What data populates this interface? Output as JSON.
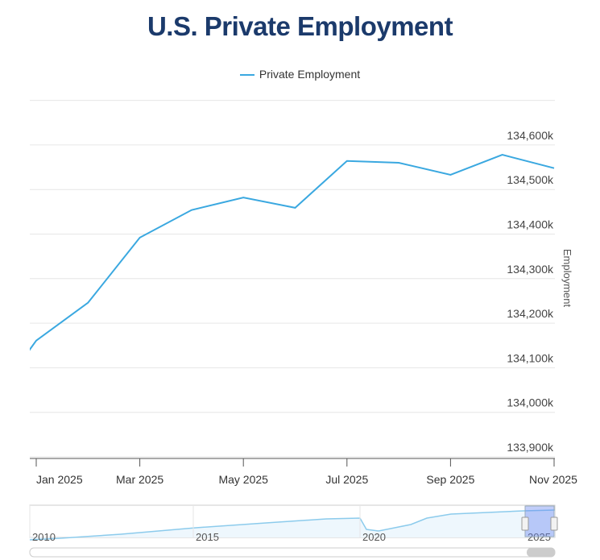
{
  "chart_data": {
    "type": "line",
    "title": "U.S. Private Employment",
    "ylabel": "Employment",
    "xlabel": "",
    "legend": {
      "position": "top",
      "entries": [
        "Private Employment"
      ]
    },
    "grid": true,
    "ylim": [
      133900,
      134700
    ],
    "yticks": [
      "133,900k",
      "134,000k",
      "134,100k",
      "134,200k",
      "134,300k",
      "134,400k",
      "134,500k",
      "134,600k"
    ],
    "xticks": [
      "Jan 2025",
      "Mar 2025",
      "May 2025",
      "Jul 2025",
      "Sep 2025",
      "Nov 2025"
    ],
    "series": [
      {
        "name": "Private Employment",
        "color": "#3aa8e0",
        "x": [
          "2024-12",
          "2025-01",
          "2025-02",
          "2025-03",
          "2025-04",
          "2025-05",
          "2025-06",
          "2025-07",
          "2025-08",
          "2025-09",
          "2025-10",
          "2025-11"
        ],
        "values": [
          134000,
          134161,
          134246,
          134392,
          134454,
          134482,
          134459,
          134564,
          134560,
          134533,
          134578,
          134548
        ]
      }
    ],
    "navigator": {
      "labels": [
        "2010",
        "2015",
        "2020",
        "2025"
      ]
    }
  }
}
